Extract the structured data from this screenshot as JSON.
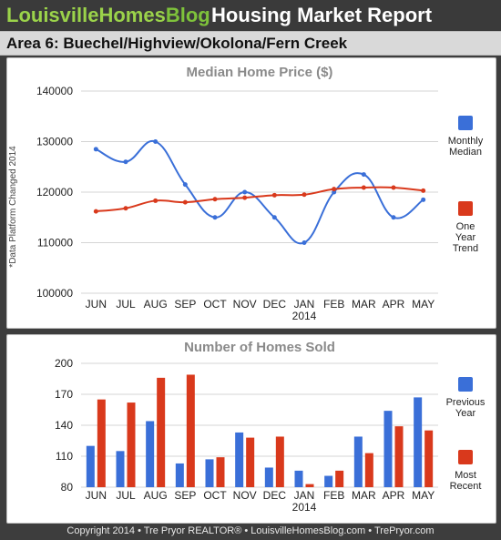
{
  "header": {
    "brand_part1": "LouisvilleHomes",
    "brand_part2": "Blog",
    "report_title": "Housing Market Report"
  },
  "area_title": "Area 6: Buechel/Highview/Okolona/Fern Creek",
  "footer": "Copyright 2014 • Tre Pryor REALTOR® • LouisvilleHomesBlog.com • TrePryor.com",
  "side_note": "*Data Platform Changed 2014",
  "colors": {
    "blue": "#3a6fd8",
    "red": "#d9391c",
    "grid": "#d4d4d4",
    "title_gray": "#8a8a8a",
    "brand_green": "#9bd34a"
  },
  "chart_data": [
    {
      "type": "line",
      "title": "Median Home Price ($)",
      "categories": [
        "JUN",
        "JUL",
        "AUG",
        "SEP",
        "OCT",
        "NOV",
        "DEC",
        "JAN",
        "FEB",
        "MAR",
        "APR",
        "MAY"
      ],
      "category_sublabels": {
        "JAN": "2014"
      },
      "ylim": [
        100000,
        140000
      ],
      "yticks": [
        "100000",
        "110000",
        "120000",
        "130000",
        "140000"
      ],
      "grid": true,
      "legend_position": "right",
      "series": [
        {
          "name": "Monthly Median",
          "legend_lines": [
            "Monthly",
            "Median"
          ],
          "color": "#3a6fd8",
          "values": [
            128500,
            126000,
            130000,
            121500,
            115000,
            120000,
            115000,
            110000,
            120000,
            123500,
            115000,
            118500
          ]
        },
        {
          "name": "One Year Trend",
          "legend_lines": [
            "One",
            "Year",
            "Trend"
          ],
          "color": "#d9391c",
          "values": [
            116200,
            116800,
            118300,
            118000,
            118600,
            118900,
            119400,
            119500,
            120600,
            120900,
            120900,
            120300
          ]
        }
      ]
    },
    {
      "type": "bar",
      "title": "Number of Homes Sold",
      "categories": [
        "JUN",
        "JUL",
        "AUG",
        "SEP",
        "OCT",
        "NOV",
        "DEC",
        "JAN",
        "FEB",
        "MAR",
        "APR",
        "MAY"
      ],
      "category_sublabels": {
        "JAN": "2014"
      },
      "ylim": [
        80,
        200
      ],
      "yticks": [
        "80",
        "110",
        "140",
        "170",
        "200"
      ],
      "grid": true,
      "legend_position": "right",
      "series": [
        {
          "name": "Previous Year",
          "legend_lines": [
            "Previous",
            "Year"
          ],
          "color": "#3a6fd8",
          "values": [
            120,
            115,
            144,
            103,
            107,
            133,
            99,
            96,
            91,
            129,
            154,
            167
          ]
        },
        {
          "name": "Most Recent",
          "legend_lines": [
            "Most",
            "Recent"
          ],
          "color": "#d9391c",
          "values": [
            165,
            162,
            186,
            189,
            109,
            128,
            129,
            83,
            96,
            113,
            139,
            135
          ]
        }
      ]
    }
  ]
}
